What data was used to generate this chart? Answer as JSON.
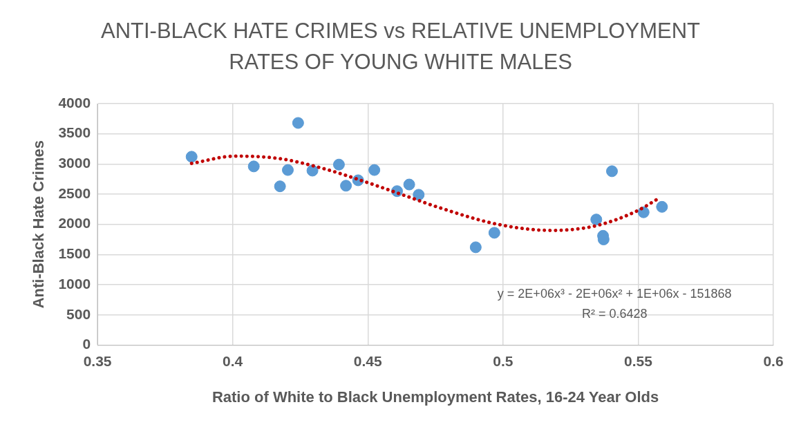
{
  "chart_data": {
    "type": "scatter",
    "title": "ANTI-BLACK HATE CRIMES vs RELATIVE UNEMPLOYMENT RATES OF YOUNG WHITE MALES",
    "xlabel": "Ratio of White to Black Unemployment Rates, 16-24 Year Olds",
    "ylabel": "Anti-Black Hate Crimes",
    "xlim": [
      0.35,
      0.6
    ],
    "xticks": [
      0.35,
      0.4,
      0.45,
      0.5,
      0.55,
      0.6
    ],
    "ylim": [
      0,
      4000
    ],
    "yticks": [
      0,
      500,
      1000,
      1500,
      2000,
      2500,
      3000,
      3500,
      4000
    ],
    "grid": true,
    "legend": false,
    "marker": "circle",
    "annotations": [
      "y = 2E+06x³ - 2E+06x² + 1E+06x - 151868",
      "R² = 0.6428"
    ],
    "series": [
      {
        "type": "scatter",
        "color": "#5b9bd5",
        "x": [
          0.3848,
          0.4078,
          0.4175,
          0.4204,
          0.4242,
          0.4295,
          0.4393,
          0.4419,
          0.4464,
          0.4524,
          0.4608,
          0.4653,
          0.4688,
          0.4899,
          0.4968,
          0.5345,
          0.537,
          0.5372,
          0.5403,
          0.552,
          0.5588
        ],
        "values": [
          3120,
          2960,
          2630,
          2900,
          3680,
          2890,
          2990,
          2640,
          2730,
          2900,
          2550,
          2660,
          2490,
          1620,
          1860,
          2080,
          1810,
          1750,
          2880,
          2200,
          2290
        ]
      },
      {
        "type": "line",
        "color": "#c00000",
        "line_style": "dotted",
        "marker": "none",
        "x": [
          0.3848,
          0.4009,
          0.4172,
          0.4331,
          0.4487,
          0.4641,
          0.4762,
          0.4981,
          0.5176,
          0.5337,
          0.549,
          0.5576
        ],
        "values": [
          3010,
          3130,
          3090,
          2930,
          2710,
          2470,
          2280,
          2000,
          1900,
          1970,
          2210,
          2430
        ]
      }
    ]
  }
}
